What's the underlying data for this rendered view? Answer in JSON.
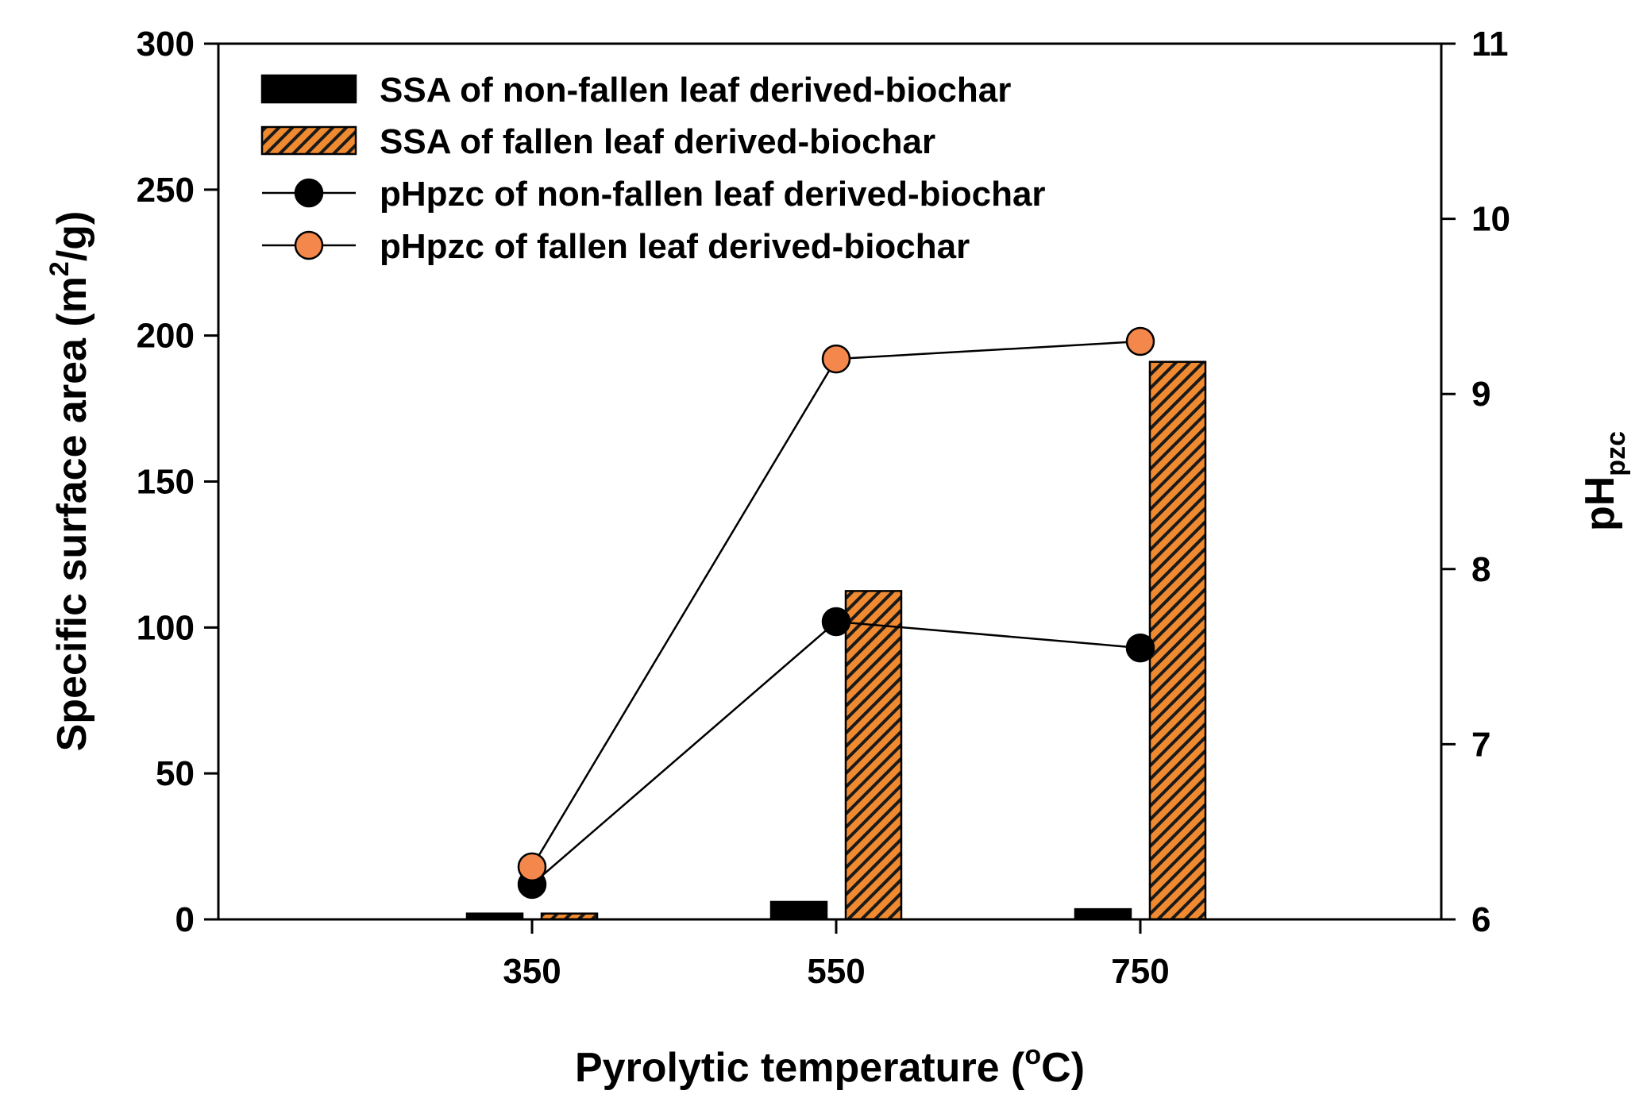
{
  "chart_data": {
    "type": "bar",
    "title": "",
    "categories": [
      "350",
      "550",
      "750"
    ],
    "xlabel": {
      "prefix": "Pyrolytic temperature (",
      "sup": "o",
      "suffix": "C)"
    },
    "ylabel": {
      "prefix": "Specific surface area (m",
      "sup": "2",
      "suffix": "/g)"
    },
    "y2label": {
      "main": "pH",
      "sub": "pzc"
    },
    "ylim": [
      0,
      300
    ],
    "y2lim": [
      6,
      11
    ],
    "yticks": [
      "0",
      "50",
      "100",
      "150",
      "200",
      "250",
      "300"
    ],
    "y2ticks": [
      "6",
      "7",
      "8",
      "9",
      "10",
      "11"
    ],
    "grid": false,
    "legend_position": "top-left",
    "series": [
      {
        "name": "SSA of non-fallen leaf derived-biochar",
        "kind": "bar",
        "axis": "left",
        "values": [
          2,
          6,
          3.5
        ],
        "color": "#000000"
      },
      {
        "name": "SSA of fallen leaf derived-biochar",
        "kind": "bar",
        "axis": "left",
        "values": [
          2,
          112.5,
          191
        ],
        "color": "#F08A30"
      },
      {
        "name": "pHpzc of non-fallen leaf derived-biochar",
        "kind": "line",
        "axis": "right",
        "values": [
          6.2,
          7.7,
          7.55
        ],
        "color": "#000000"
      },
      {
        "name": "pHpzc of fallen leaf derived-biochar",
        "kind": "line",
        "axis": "right",
        "values": [
          6.3,
          9.2,
          9.3
        ],
        "color": "#F4874B"
      }
    ]
  }
}
